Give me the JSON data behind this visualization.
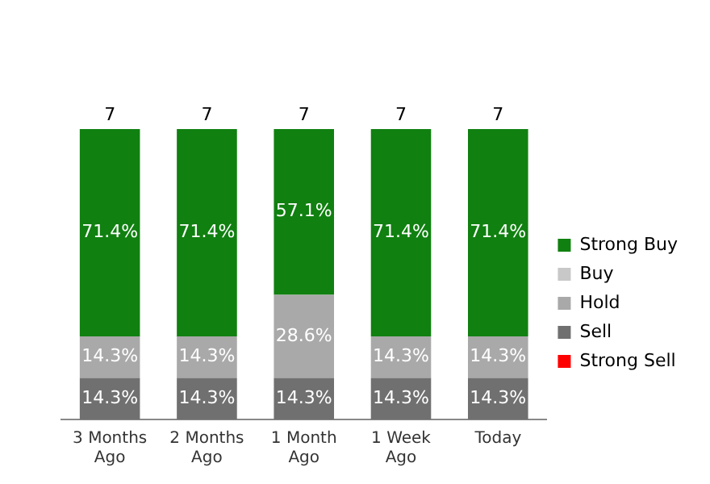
{
  "chart_data": {
    "type": "bar",
    "stacked": true,
    "categories": [
      "3 Months Ago",
      "2 Months Ago",
      "1 Month Ago",
      "1 Week Ago",
      "Today"
    ],
    "series": [
      {
        "name": "Strong Sell",
        "color": "#ff0000",
        "values": [
          null,
          null,
          null,
          null,
          null
        ]
      },
      {
        "name": "Sell",
        "color": "#707070",
        "values": [
          14.3,
          14.3,
          14.3,
          14.3,
          14.3
        ],
        "value_labels": [
          "14.3%",
          "14.3%",
          "14.3%",
          "14.3%",
          "14.3%"
        ]
      },
      {
        "name": "Hold",
        "color": "#a9a9a9",
        "values": [
          14.3,
          14.3,
          28.6,
          14.3,
          14.3
        ],
        "value_labels": [
          "14.3%",
          "14.3%",
          "28.6%",
          "14.3%",
          "14.3%"
        ]
      },
      {
        "name": "Buy",
        "color": "#c8c8c8",
        "values": [
          null,
          null,
          null,
          null,
          null
        ]
      },
      {
        "name": "Strong Buy",
        "color": "#108010",
        "values": [
          71.4,
          71.4,
          57.1,
          71.4,
          71.4
        ],
        "value_labels": [
          "71.4%",
          "71.4%",
          "57.1%",
          "71.4%",
          "71.4%"
        ]
      }
    ],
    "annotations": [
      {
        "text": "7",
        "x": "3 Months Ago",
        "y": 100
      },
      {
        "text": "7",
        "x": "2 Months Ago",
        "y": 100
      },
      {
        "text": "7",
        "x": "1 Month Ago",
        "y": 100
      },
      {
        "text": "7",
        "x": "1 Week Ago",
        "y": 100
      },
      {
        "text": "7",
        "x": "Today",
        "y": 100
      }
    ],
    "legend": "right",
    "grid": false,
    "tick_labels": "x"
  }
}
